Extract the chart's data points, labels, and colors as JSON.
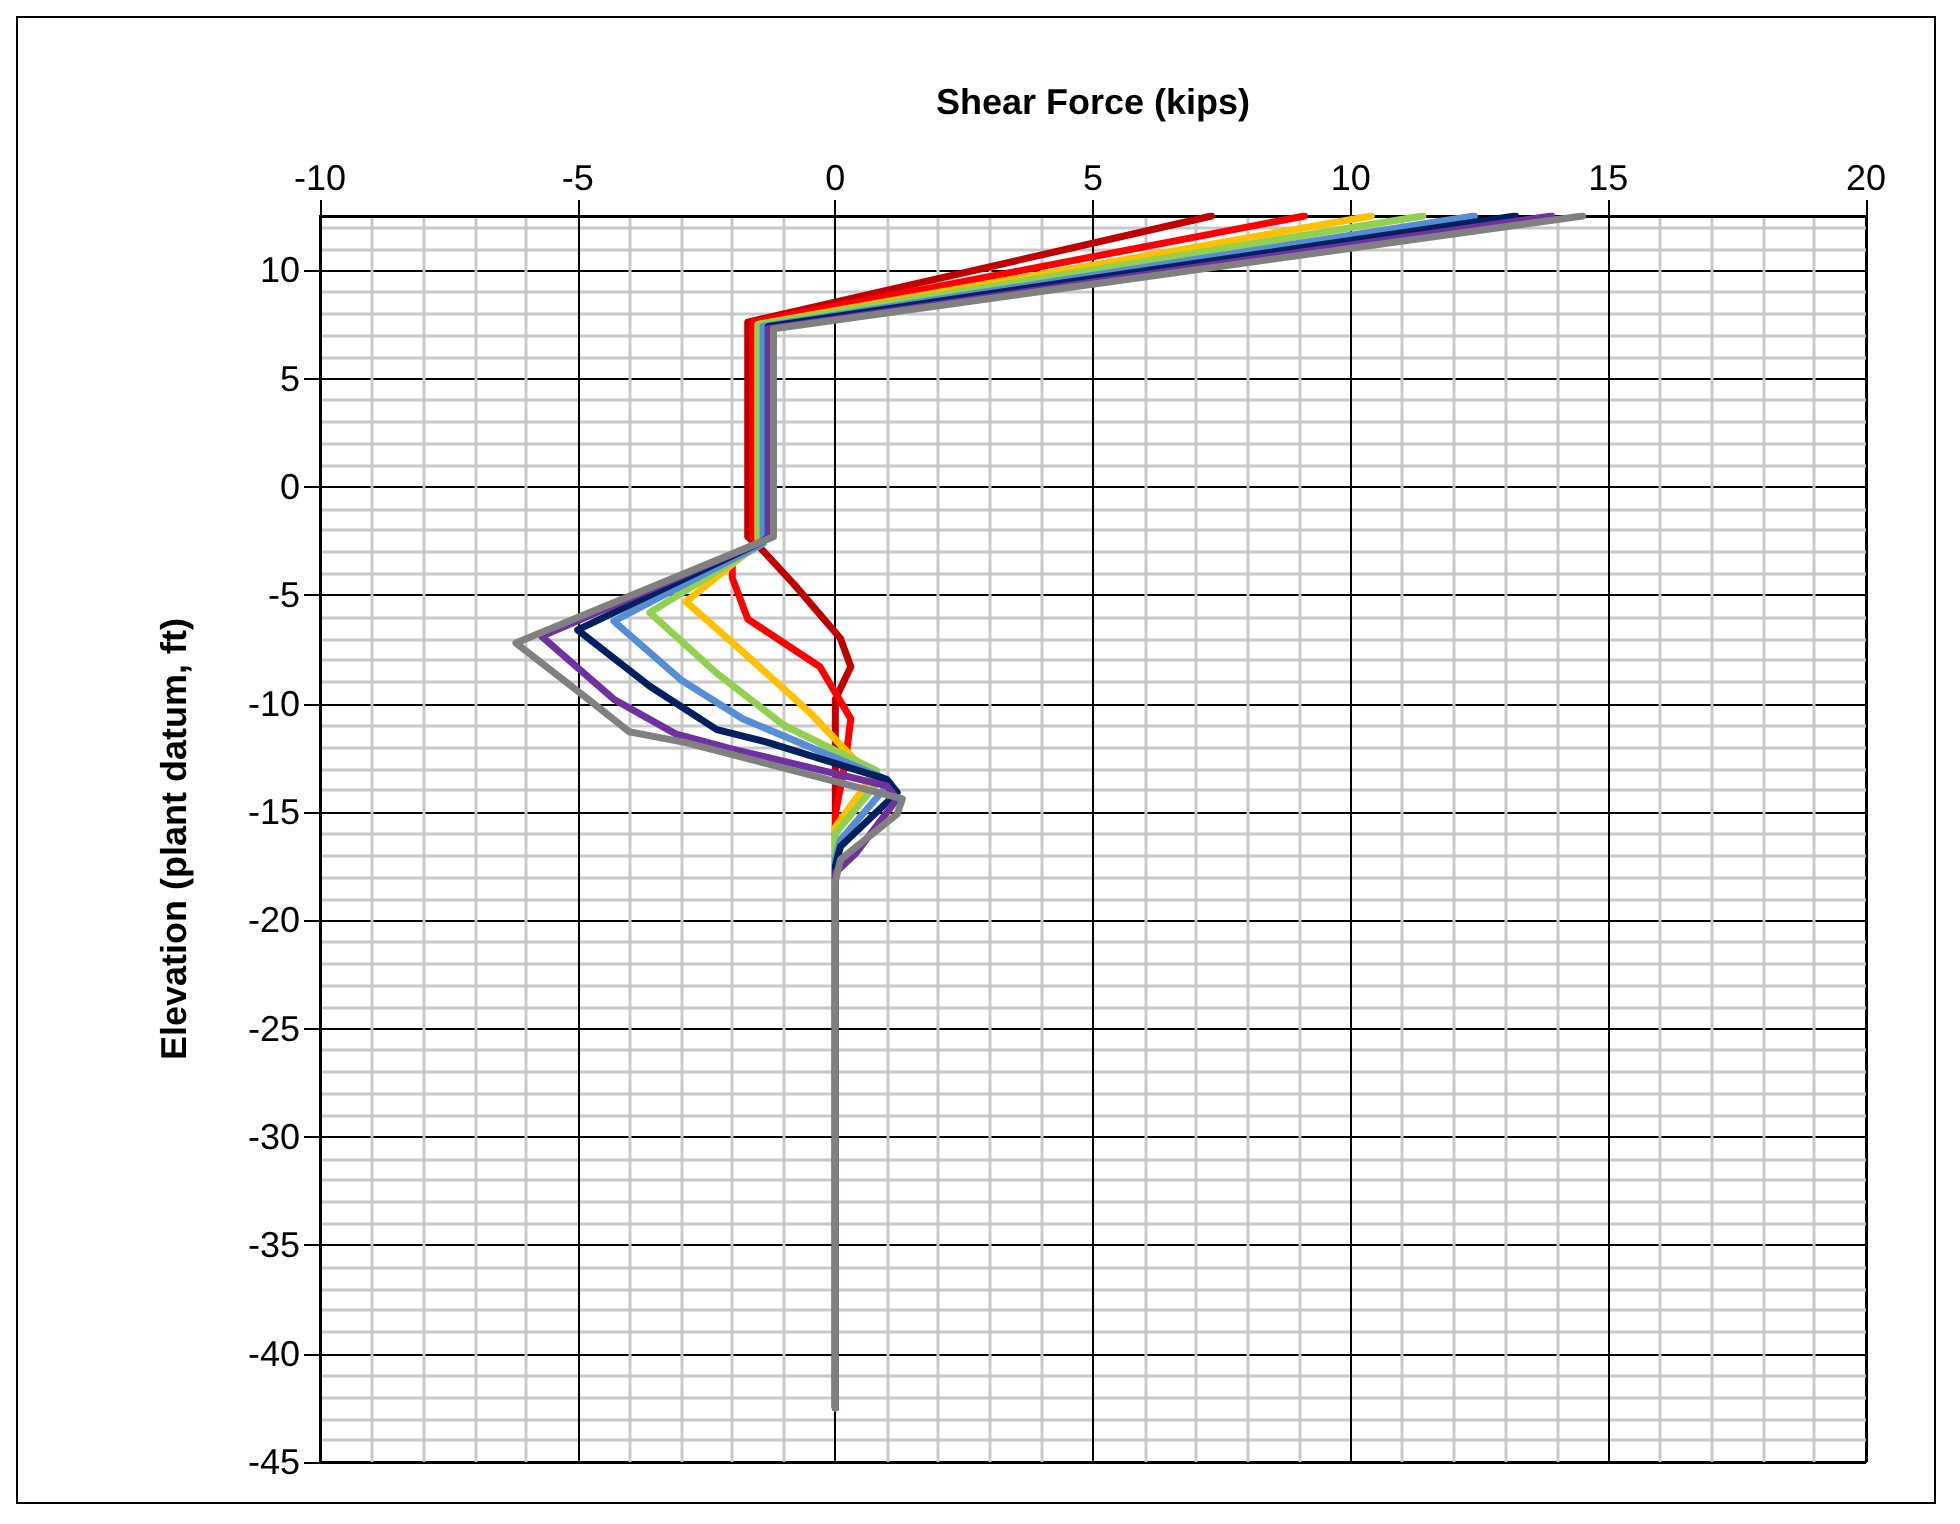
{
  "chart_data": {
    "type": "line",
    "xlabel": "Shear Force (kips)",
    "ylabel": "Elevation (plant datum, ft)",
    "xlim": [
      -10,
      20
    ],
    "xticks": [
      -10,
      -5,
      0,
      5,
      10,
      15,
      20
    ],
    "ylim": [
      -45,
      12.5
    ],
    "yticks": [
      -45,
      -40,
      -35,
      -30,
      -25,
      -20,
      -15,
      -10,
      -5,
      0,
      5,
      10
    ],
    "grid": true,
    "marker": "none",
    "line_style": "solid",
    "series": [
      {
        "color": "#c00000",
        "x": [
          7.3,
          -1.7,
          -1.7,
          -1.5,
          -0.8,
          0.1,
          0.3,
          0,
          0
        ],
        "values": [
          12.5,
          7.6,
          -2.3,
          -2.7,
          -4.5,
          -7.0,
          -8.3,
          -9.8,
          -42.5
        ]
      },
      {
        "color": "#ff0000",
        "x": [
          9.1,
          -1.6,
          -1.6,
          -1.5,
          -2.0,
          -2.0,
          -1.7,
          -0.3,
          0.3,
          0.2,
          0,
          0
        ],
        "values": [
          12.5,
          7.6,
          -2.3,
          -2.6,
          -3.3,
          -4.2,
          -6.1,
          -8.3,
          -10.7,
          -12.6,
          -15.1,
          -42.5
        ]
      },
      {
        "color": "#ffc000",
        "x": [
          10.4,
          -1.5,
          -1.5,
          -1.5,
          -2.9,
          -1.8,
          -0.5,
          0.5,
          0.7,
          0,
          0
        ],
        "values": [
          12.5,
          7.5,
          -2.3,
          -2.6,
          -5.3,
          -7.6,
          -10.4,
          -12.9,
          -13.4,
          -15.7,
          -42.5
        ]
      },
      {
        "color": "#92d050",
        "x": [
          11.4,
          -1.5,
          -1.5,
          -1.4,
          -3.6,
          -2.3,
          -1.0,
          0.8,
          0.8,
          0,
          0
        ],
        "values": [
          12.5,
          7.5,
          -2.3,
          -2.6,
          -5.8,
          -8.6,
          -11.0,
          -13.1,
          -13.7,
          -16.0,
          -42.5
        ]
      },
      {
        "color": "#558ed5",
        "x": [
          12.4,
          -1.4,
          -1.4,
          -1.4,
          -4.3,
          -3.0,
          -1.8,
          0.9,
          1.0,
          0.1,
          0,
          0
        ],
        "values": [
          12.5,
          7.4,
          -2.3,
          -2.6,
          -6.2,
          -8.9,
          -10.7,
          -13.4,
          -13.8,
          -16.3,
          -17.2,
          -42.5
        ]
      },
      {
        "color": "#002060",
        "x": [
          13.2,
          -1.3,
          -1.3,
          -1.4,
          -5.0,
          -3.6,
          -2.3,
          -1.3,
          1.0,
          1.2,
          0.1,
          0,
          0
        ],
        "values": [
          12.5,
          7.4,
          -2.3,
          -2.5,
          -6.6,
          -9.2,
          -11.2,
          -11.8,
          -13.5,
          -14.1,
          -16.6,
          -17.5,
          -42.5
        ]
      },
      {
        "color": "#7030a0",
        "x": [
          13.9,
          -1.3,
          -1.3,
          -1.4,
          -5.7,
          -4.3,
          -3.1,
          -2.0,
          1.0,
          1.2,
          0.4,
          0,
          0
        ],
        "values": [
          12.5,
          7.3,
          -2.3,
          -2.5,
          -6.9,
          -9.8,
          -11.4,
          -12.1,
          -13.8,
          -14.4,
          -16.9,
          -17.8,
          -42.5
        ]
      },
      {
        "color": "#808080",
        "x": [
          14.5,
          -1.2,
          -1.2,
          -1.4,
          -6.2,
          -4.9,
          -4.0,
          -2.9,
          1.3,
          1.2,
          0.1,
          0,
          0
        ],
        "values": [
          12.5,
          7.3,
          -2.3,
          -2.5,
          -7.2,
          -9.6,
          -11.3,
          -11.8,
          -14.4,
          -15.1,
          -17.2,
          -18.2,
          -42.5
        ]
      }
    ]
  }
}
